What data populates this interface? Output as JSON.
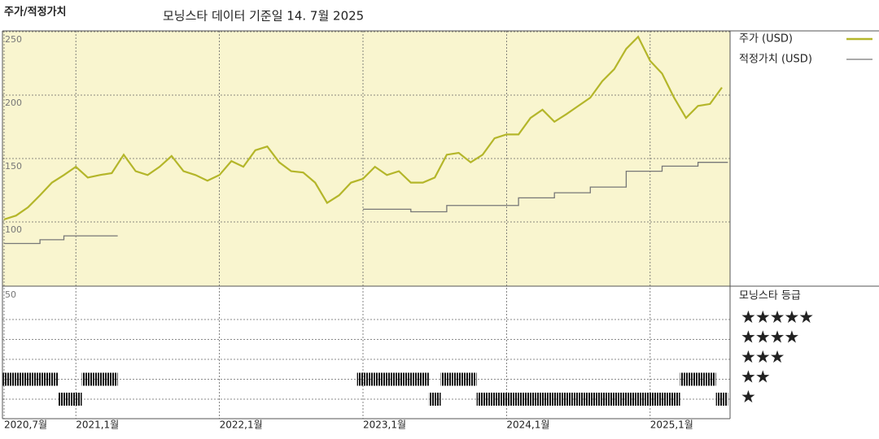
{
  "title": "주가/적정가치",
  "subtitle": "모닝스타 데이터 기준일 14. 7월 2025",
  "chart_data": [
    {
      "type": "line",
      "background": "#f9f5cf",
      "grid": true,
      "x": [
        "2020-07",
        "2020-08",
        "2020-09",
        "2020-10",
        "2020-11",
        "2020-12",
        "2021-01",
        "2021-02",
        "2021-03",
        "2021-04",
        "2021-05",
        "2021-06",
        "2021-07",
        "2021-08",
        "2021-09",
        "2021-10",
        "2021-11",
        "2021-12",
        "2022-01",
        "2022-02",
        "2022-03",
        "2022-04",
        "2022-05",
        "2022-06",
        "2022-07",
        "2022-08",
        "2022-09",
        "2022-10",
        "2022-11",
        "2022-12",
        "2023-01",
        "2023-02",
        "2023-03",
        "2023-04",
        "2023-05",
        "2023-06",
        "2023-07",
        "2023-08",
        "2023-09",
        "2023-10",
        "2023-11",
        "2023-12",
        "2024-01",
        "2024-02",
        "2024-03",
        "2024-04",
        "2024-05",
        "2024-06",
        "2024-07",
        "2024-08",
        "2024-09",
        "2024-10",
        "2024-11",
        "2024-12",
        "2025-01",
        "2025-02",
        "2025-03",
        "2025-04",
        "2025-05",
        "2025-06",
        "2025-07"
      ],
      "xticks": [
        {
          "value": "2020-07",
          "label": "2020,7월"
        },
        {
          "value": "2021-01",
          "label": "2021,1월"
        },
        {
          "value": "2022-01",
          "label": "2022,1월"
        },
        {
          "value": "2023-01",
          "label": "2023,1월"
        },
        {
          "value": "2024-01",
          "label": "2024,1월"
        },
        {
          "value": "2025-01",
          "label": "2025,1월"
        }
      ],
      "ylim": [
        50,
        250
      ],
      "yticks": [
        100,
        150,
        200,
        250
      ],
      "series": [
        {
          "name": "주가 (USD)",
          "color": "#b4b62a",
          "values": [
            102,
            105,
            111.5,
            121,
            131,
            137,
            143.5,
            135,
            137,
            138.5,
            153,
            140,
            137,
            143.5,
            152,
            140,
            137,
            132.5,
            137,
            148,
            143.5,
            156.5,
            159.5,
            147,
            140,
            139,
            131,
            115,
            121,
            131,
            134,
            143.5,
            137,
            140,
            131,
            131,
            135,
            153,
            154.5,
            147,
            153,
            166,
            169,
            169,
            182,
            188.5,
            179,
            185,
            191.5,
            198,
            211,
            220.5,
            236.5,
            246,
            227,
            217,
            198,
            182,
            191.5,
            193,
            206
          ]
        },
        {
          "name": "적정가치 (USD)",
          "color": "#777777",
          "step": true,
          "values": [
            83,
            83,
            83,
            86,
            86,
            89,
            89,
            89,
            89,
            89,
            null,
            null,
            null,
            null,
            null,
            null,
            null,
            null,
            null,
            null,
            null,
            null,
            null,
            null,
            null,
            null,
            null,
            null,
            null,
            null,
            110,
            110,
            110,
            110,
            108,
            108,
            108,
            113,
            113,
            113,
            113,
            113,
            113,
            119,
            119,
            119,
            123,
            123,
            123,
            127.5,
            127.5,
            127.5,
            140,
            140,
            140,
            144,
            144,
            144,
            147,
            147,
            147
          ]
        }
      ]
    },
    {
      "type": "rating",
      "title": "모닝스타 등급",
      "annotation": "50",
      "color": "#111111",
      "x": [
        "2020-07",
        "2020-08",
        "2020-09",
        "2020-10",
        "2020-11",
        "2020-12",
        "2021-01",
        "2021-02",
        "2021-03",
        "2021-04",
        "2021-05",
        "2021-06",
        "2021-07",
        "2021-08",
        "2021-09",
        "2021-10",
        "2021-11",
        "2021-12",
        "2022-01",
        "2022-02",
        "2022-03",
        "2022-04",
        "2022-05",
        "2022-06",
        "2022-07",
        "2022-08",
        "2022-09",
        "2022-10",
        "2022-11",
        "2022-12",
        "2023-01",
        "2023-02",
        "2023-03",
        "2023-04",
        "2023-05",
        "2023-06",
        "2023-07",
        "2023-08",
        "2023-09",
        "2023-10",
        "2023-11",
        "2023-12",
        "2024-01",
        "2024-02",
        "2024-03",
        "2024-04",
        "2024-05",
        "2024-06",
        "2024-07",
        "2024-08",
        "2024-09",
        "2024-10",
        "2024-11",
        "2024-12",
        "2025-01",
        "2025-02",
        "2025-03",
        "2025-04",
        "2025-05",
        "2025-06",
        "2025-07"
      ],
      "yticks": [
        {
          "value": 5,
          "label": "★★★★★"
        },
        {
          "value": 4,
          "label": "★★★★"
        },
        {
          "value": 3,
          "label": "★★★"
        },
        {
          "value": 2,
          "label": "★★"
        },
        {
          "value": 1,
          "label": "★"
        }
      ],
      "values": [
        2,
        2,
        2,
        2,
        2,
        1,
        1,
        2,
        2,
        2,
        null,
        null,
        null,
        null,
        null,
        null,
        null,
        null,
        null,
        null,
        null,
        null,
        null,
        null,
        null,
        null,
        null,
        null,
        null,
        null,
        2,
        2,
        2,
        2,
        2,
        2,
        1,
        2,
        2,
        2,
        1,
        1,
        1,
        1,
        1,
        1,
        1,
        1,
        1,
        1,
        1,
        1,
        1,
        1,
        1,
        1,
        1,
        2,
        2,
        2,
        1
      ]
    }
  ]
}
